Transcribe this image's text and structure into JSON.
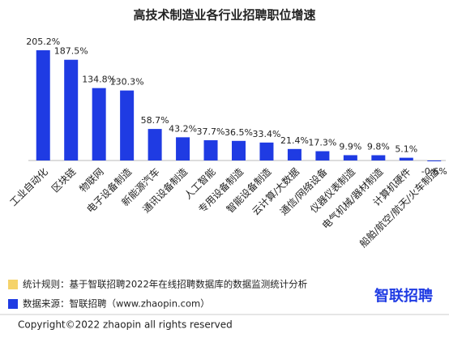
{
  "chart_data": {
    "type": "bar",
    "title": "高技术制造业各行业招聘职位增速",
    "categories": [
      "工业自动化",
      "区块链",
      "物联网",
      "电子设备制造",
      "新能源汽车",
      "通讯设备制造",
      "人工智能",
      "专用设备制造",
      "智能设备制造",
      "云计算/大数据",
      "通信/网络设备",
      "仪器仪表制造",
      "电气机械/器材制造",
      "计算机硬件",
      "船舶/航空/航天/火车制造"
    ],
    "values": [
      205.2,
      187.5,
      134.8,
      130.3,
      58.7,
      43.2,
      37.7,
      36.5,
      33.4,
      21.4,
      17.3,
      9.9,
      9.8,
      5.1,
      -0.6
    ],
    "value_labels": [
      "205.2%",
      "187.5%",
      "134.8%",
      "130.3%",
      "58.7%",
      "43.2%",
      "37.7%",
      "36.5%",
      "33.4%",
      "21.4%",
      "17.3%",
      "9.9%",
      "9.8%",
      "5.1%",
      "-0.6%"
    ],
    "color": "#1f3be3"
  },
  "notes": [
    {
      "text": "统计规则：基于智联招聘2022年在线招聘数据库的数据监测统计分析",
      "color": "#f5d36a"
    },
    {
      "text": "数据来源：智联招聘（www.zhaopin.com）",
      "color": "#1f3be3"
    }
  ],
  "logo": "智联招聘",
  "copyright": "Copyright©2022 zhaopin all rights reserved"
}
